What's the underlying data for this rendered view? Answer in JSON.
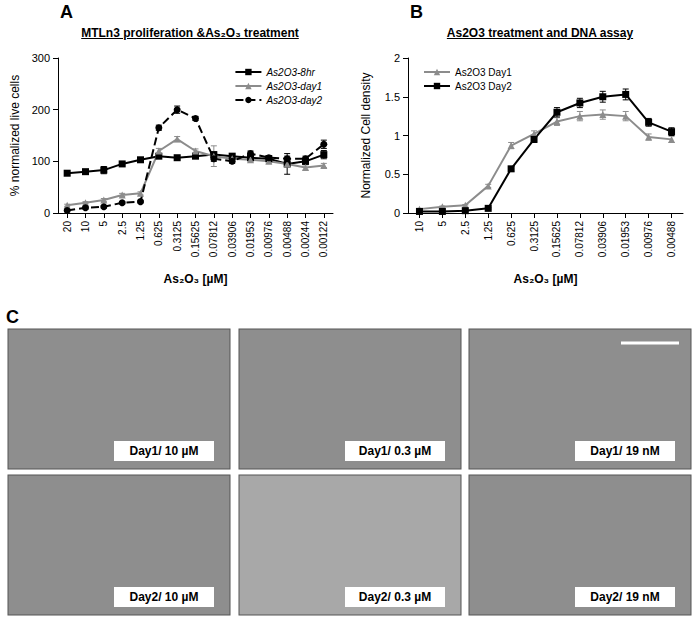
{
  "chart_data": [
    {
      "panel": "A",
      "type": "line",
      "title": "MTLn3 proliferation &As₂O₃ treatment",
      "x_label": "As₂O₃ [µM]",
      "y_label": "% normalized live cells",
      "categories": [
        "20",
        "10",
        "5",
        "2.5",
        "1.25",
        "0.625",
        "0.3125",
        "0.15625",
        "0.07812",
        "0.03906",
        "0.01953",
        "0.00976",
        "0.00488",
        "0.00244",
        "0.00122"
      ],
      "series": [
        {
          "name": "As2O3-8hr",
          "color": "#000000",
          "marker": "square",
          "line_style": "solid",
          "values": [
            77,
            80,
            83,
            95,
            103,
            110,
            107,
            110,
            113,
            110,
            107,
            105,
            95,
            100,
            113
          ],
          "errors": [
            4,
            4,
            7,
            4,
            4,
            4,
            4,
            4,
            5,
            4,
            4,
            5,
            20,
            6,
            8
          ]
        },
        {
          "name": "As2O3-day1",
          "color": "#8c8c8c",
          "marker": "triangle",
          "line_style": "solid",
          "values": [
            15,
            20,
            25,
            35,
            38,
            120,
            143,
            120,
            110,
            105,
            103,
            100,
            95,
            88,
            92
          ],
          "errors": [
            2,
            2,
            3,
            3,
            3,
            5,
            5,
            4,
            20,
            4,
            4,
            4,
            6,
            5,
            4
          ]
        },
        {
          "name": "As2O3-day2",
          "color": "#000000",
          "marker": "circle",
          "line_style": "dashed",
          "values": [
            5,
            10,
            12,
            20,
            22,
            165,
            200,
            183,
            105,
            100,
            115,
            107,
            105,
            105,
            133
          ],
          "errors": [
            1,
            2,
            2,
            2,
            2,
            5,
            7,
            4,
            5,
            4,
            5,
            4,
            5,
            5,
            8
          ]
        }
      ],
      "ylim": [
        0,
        300
      ],
      "yticks": [
        0,
        100,
        200,
        300
      ],
      "grid": false,
      "legend": "upper right"
    },
    {
      "panel": "B",
      "type": "line",
      "title": "As2O3 treatment and DNA assay",
      "x_label": "As₂O₃ [µM]",
      "y_label": "Normalized Cell density",
      "categories": [
        "10",
        "5",
        "2.5",
        "1.25",
        "0.625",
        "0.3125",
        "0.15625",
        "0.07812",
        "0.03906",
        "0.01953",
        "0.00976",
        "0.00488"
      ],
      "series": [
        {
          "name": "As2O3 Day1",
          "color": "#8c8c8c",
          "marker": "triangle",
          "line_style": "solid",
          "values": [
            0.05,
            0.08,
            0.1,
            0.35,
            0.87,
            1.02,
            1.18,
            1.25,
            1.27,
            1.25,
            0.98,
            0.95
          ],
          "errors": [
            0.01,
            0.01,
            0.01,
            0.02,
            0.04,
            0.04,
            0.05,
            0.06,
            0.06,
            0.06,
            0.04,
            0.04
          ]
        },
        {
          "name": "As2O3 Day2",
          "color": "#000000",
          "marker": "square",
          "line_style": "solid",
          "values": [
            0.02,
            0.02,
            0.03,
            0.06,
            0.57,
            0.95,
            1.3,
            1.42,
            1.5,
            1.53,
            1.17,
            1.05
          ],
          "errors": [
            0.01,
            0.01,
            0.01,
            0.01,
            0.03,
            0.04,
            0.06,
            0.06,
            0.07,
            0.07,
            0.05,
            0.05
          ]
        }
      ],
      "ylim": [
        0,
        2
      ],
      "yticks": [
        0,
        0.5,
        1,
        1.5,
        2
      ],
      "grid": false,
      "legend": "upper left"
    }
  ],
  "panel_c": {
    "panel": "C",
    "images": [
      {
        "caption": "Day1/ 10 µM"
      },
      {
        "caption": "Day1/ 0.3 µM"
      },
      {
        "caption": "Day1/ 19 nM"
      },
      {
        "caption": "Day2/ 10 µM"
      },
      {
        "caption": "Day2/ 0.3 µM"
      },
      {
        "caption": "Day2/ 19 nM"
      }
    ]
  }
}
